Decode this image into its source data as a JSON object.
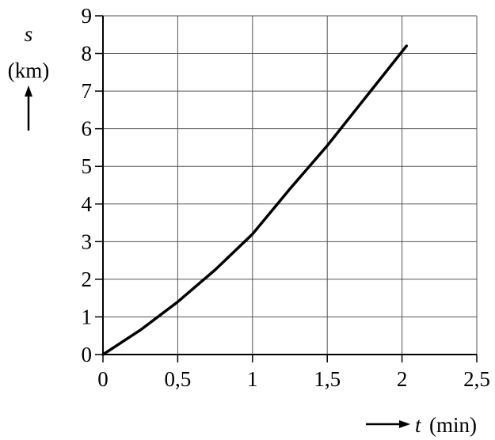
{
  "chart_data": {
    "type": "line",
    "y_label": "s",
    "y_unit": "(km)",
    "x_label": "t",
    "x_unit": "(min)",
    "x": [
      0,
      0.25,
      0.5,
      0.75,
      1,
      1.25,
      1.5,
      1.75,
      2.03
    ],
    "series": [
      {
        "color": "#000000",
        "values": [
          0,
          0.65,
          1.4,
          2.25,
          3.2,
          4.4,
          5.55,
          6.8,
          8.2
        ]
      }
    ],
    "xlim": [
      0,
      2.5
    ],
    "ylim": [
      0,
      9
    ],
    "xticks": [
      0,
      {
        "value": 0.5,
        "label": "0,5"
      },
      1,
      {
        "value": 1.5,
        "label": "1,5"
      },
      2,
      {
        "value": 2.5,
        "label": "2,5"
      }
    ],
    "yticks": [
      0,
      1,
      2,
      3,
      4,
      5,
      6,
      7,
      8,
      9
    ],
    "grid": true
  }
}
